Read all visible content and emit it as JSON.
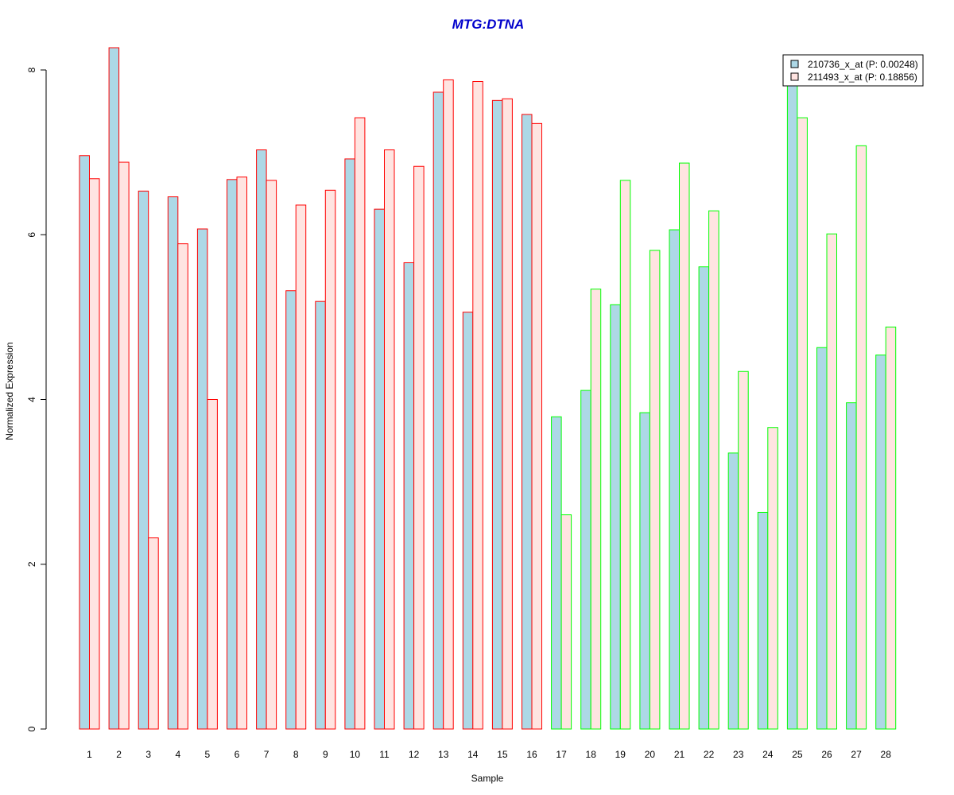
{
  "chart_data": {
    "type": "bar",
    "title": "MTG:DTNA",
    "xlabel": "Sample",
    "ylabel": "Normalized Expression",
    "categories": [
      "1",
      "2",
      "3",
      "4",
      "5",
      "6",
      "7",
      "8",
      "9",
      "10",
      "11",
      "12",
      "13",
      "14",
      "15",
      "16",
      "17",
      "18",
      "19",
      "20",
      "21",
      "22",
      "23",
      "24",
      "25",
      "26",
      "27",
      "28"
    ],
    "yticks": [
      "0",
      "2",
      "4",
      "6",
      "8"
    ],
    "ylim": [
      0,
      8.3
    ],
    "series": [
      {
        "name": "210736_x_at (P: 0.00248)",
        "fill": "#add8e6",
        "values": [
          6.96,
          8.27,
          6.53,
          6.46,
          6.07,
          6.67,
          7.03,
          5.32,
          5.19,
          6.92,
          6.31,
          5.66,
          7.73,
          5.06,
          7.63,
          7.46,
          3.79,
          4.11,
          5.15,
          3.84,
          6.06,
          5.61,
          3.35,
          2.63,
          7.98,
          4.63,
          3.96,
          4.54
        ]
      },
      {
        "name": "211493_x_at (P: 0.18856)",
        "fill": "#ffe4e1",
        "values": [
          6.68,
          6.88,
          2.32,
          5.89,
          4.0,
          6.7,
          6.66,
          6.36,
          6.54,
          7.42,
          7.03,
          6.83,
          7.88,
          7.86,
          7.65,
          7.35,
          2.6,
          5.34,
          6.66,
          5.81,
          6.87,
          6.29,
          4.34,
          3.66,
          7.42,
          6.01,
          7.08,
          4.88
        ]
      }
    ],
    "group_border_colors": [
      "#ff0000",
      "#ff0000",
      "#ff0000",
      "#ff0000",
      "#ff0000",
      "#ff0000",
      "#ff0000",
      "#ff0000",
      "#ff0000",
      "#ff0000",
      "#ff0000",
      "#ff0000",
      "#ff0000",
      "#ff0000",
      "#ff0000",
      "#ff0000",
      "#00ff00",
      "#00ff00",
      "#00ff00",
      "#00ff00",
      "#00ff00",
      "#00ff00",
      "#00ff00",
      "#00ff00",
      "#00ff00",
      "#00ff00",
      "#00ff00",
      "#00ff00"
    ],
    "title_color": "#0000cc",
    "legend_position": "top-right",
    "grid": false
  }
}
